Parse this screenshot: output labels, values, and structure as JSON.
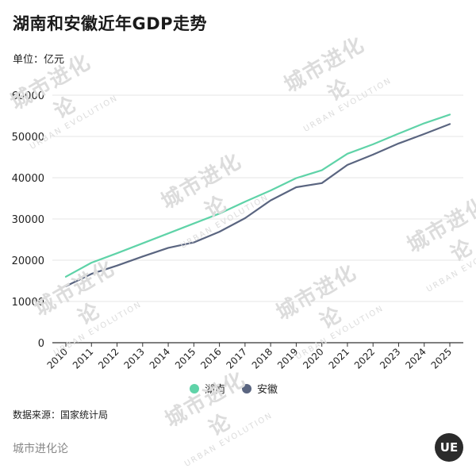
{
  "header": {
    "title": "湖南和安徽近年GDP走势",
    "unit": "单位：亿元"
  },
  "footer": {
    "source": "数据来源：国家统计局",
    "brand": "城市进化论",
    "logo_text": "UE"
  },
  "watermark": {
    "cn": "城市进化论",
    "en": "URBAN EVOLUTION"
  },
  "colors": {
    "hunan": "#5fd3a8",
    "anhui": "#5a6580",
    "grid": "#e6e6e6",
    "axis": "#333333"
  },
  "chart_data": {
    "type": "line",
    "title": "湖南和安徽近年GDP走势",
    "xlabel": "",
    "ylabel": "单位：亿元",
    "x": [
      "2010",
      "2011",
      "2012",
      "2013",
      "2014",
      "2015",
      "2016",
      "2017",
      "2018",
      "2019",
      "2020",
      "2021",
      "2022",
      "2023",
      "2024",
      "2025"
    ],
    "ylim": [
      0,
      60000
    ],
    "yticks": [
      "0",
      "10000",
      "20000",
      "30000",
      "40000",
      "50000",
      "60000"
    ],
    "grid": true,
    "legend_position": "bottom-center",
    "series": [
      {
        "name": "湖南",
        "color": "#5fd3a8",
        "values": [
          16000,
          19400,
          21700,
          24100,
          26500,
          28900,
          31300,
          34200,
          36900,
          39900,
          41800,
          45800,
          48100,
          50700,
          53200,
          55300
        ]
      },
      {
        "name": "安徽",
        "color": "#5a6580",
        "values": [
          13700,
          16700,
          18700,
          20900,
          23000,
          24300,
          26900,
          30200,
          34500,
          37700,
          38700,
          43100,
          45600,
          48300,
          50600,
          53000
        ]
      }
    ]
  }
}
